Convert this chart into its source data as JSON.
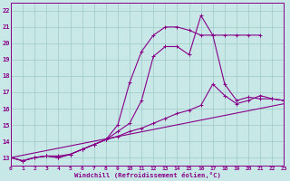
{
  "bg_color": "#c8e8e8",
  "grid_color": "#a0c8c8",
  "line_color": "#880088",
  "xlim": [
    0,
    23
  ],
  "ylim": [
    12.5,
    22.5
  ],
  "xticks": [
    0,
    1,
    2,
    3,
    4,
    5,
    6,
    7,
    8,
    9,
    10,
    11,
    12,
    13,
    14,
    15,
    16,
    17,
    18,
    19,
    20,
    21,
    22,
    23
  ],
  "yticks": [
    13,
    14,
    15,
    16,
    17,
    18,
    19,
    20,
    21,
    22
  ],
  "xlabel": "Windchill (Refroidissement éolien,°C)",
  "line1_x": [
    0,
    1,
    2,
    3,
    4,
    5,
    6,
    7,
    8,
    9,
    10,
    11,
    12,
    13,
    14,
    15,
    16,
    17,
    18,
    19,
    20,
    21
  ],
  "line1_y": [
    13.0,
    12.8,
    13.0,
    13.1,
    13.0,
    13.2,
    13.5,
    13.8,
    14.1,
    15.0,
    17.6,
    19.5,
    20.5,
    21.0,
    21.0,
    20.8,
    20.5,
    20.5,
    20.5,
    20.5,
    20.5,
    20.5
  ],
  "line2_x": [
    0,
    1,
    2,
    3,
    4,
    5,
    6,
    7,
    8,
    9,
    10,
    11,
    12,
    13,
    14,
    15,
    16,
    17,
    18,
    19,
    20,
    21,
    22,
    23
  ],
  "line2_y": [
    13.0,
    12.8,
    13.0,
    13.1,
    13.0,
    13.2,
    13.5,
    13.8,
    14.1,
    14.6,
    15.1,
    16.5,
    19.2,
    19.8,
    19.8,
    19.3,
    21.7,
    20.5,
    17.5,
    16.5,
    16.7,
    16.6,
    16.6,
    16.5
  ],
  "line3_x": [
    0,
    1,
    2,
    3,
    4,
    5,
    6,
    7,
    8,
    9,
    10,
    11,
    12,
    13,
    14,
    15,
    16,
    17,
    18,
    19,
    20,
    21,
    22,
    23
  ],
  "line3_y": [
    13.0,
    12.8,
    13.0,
    13.1,
    13.1,
    13.2,
    13.5,
    13.8,
    14.1,
    14.3,
    14.6,
    14.8,
    15.1,
    15.4,
    15.7,
    15.9,
    16.2,
    17.5,
    16.8,
    16.3,
    16.5,
    16.8,
    16.6,
    16.5
  ],
  "line4_x": [
    0,
    23
  ],
  "line4_y": [
    13.0,
    16.3
  ]
}
